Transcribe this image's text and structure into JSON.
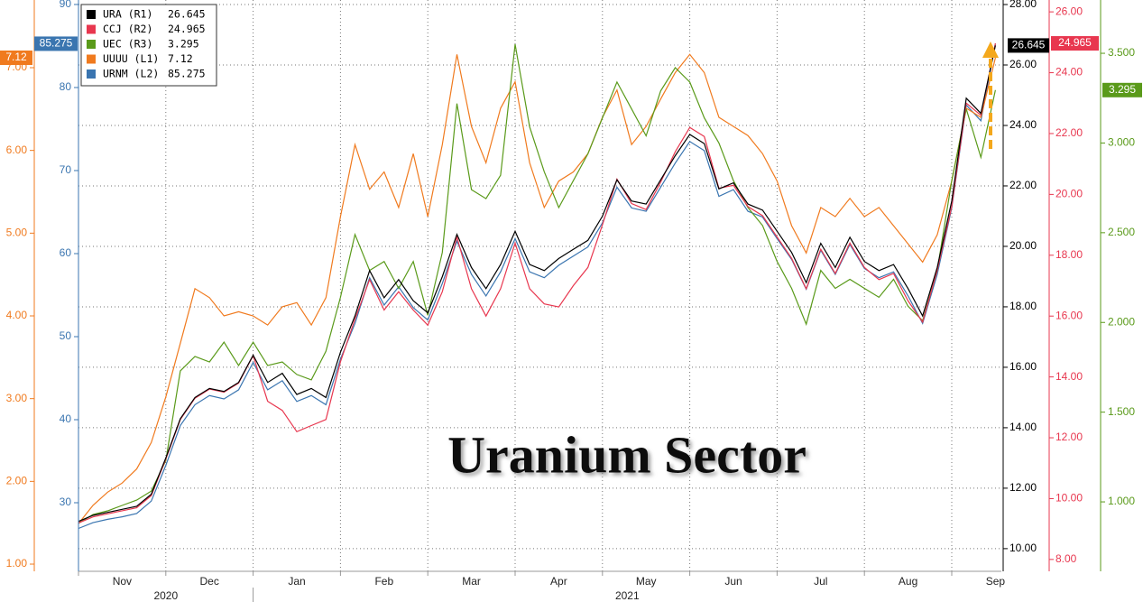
{
  "chart_data": {
    "type": "line",
    "annotation": "Uranium Sector",
    "categories": [
      "Nov",
      null,
      null,
      null,
      null,
      null,
      "Dec",
      null,
      null,
      null,
      null,
      null,
      "Jan",
      null,
      null,
      null,
      null,
      null,
      "Feb",
      null,
      null,
      null,
      null,
      null,
      "Mar",
      null,
      null,
      null,
      null,
      null,
      "Apr",
      null,
      null,
      null,
      null,
      null,
      "May",
      null,
      null,
      null,
      null,
      null,
      "Jun",
      null,
      null,
      null,
      null,
      null,
      "Jul",
      null,
      null,
      null,
      null,
      null,
      "Aug",
      null,
      null,
      null,
      null,
      null,
      "Sep",
      null,
      null,
      null
    ],
    "years": [
      "2020",
      "2021"
    ],
    "grid": true,
    "legend": "upper left",
    "axes": {
      "L1": {
        "lim": [
          0.913,
          7.818
        ],
        "color": "#f07a1e",
        "ticks": [
          {
            "value": 1,
            "label": "1.00"
          },
          {
            "value": 2,
            "label": "2.00"
          },
          {
            "value": 3,
            "label": "3.00"
          },
          {
            "value": 4,
            "label": "4.00"
          },
          {
            "value": 5,
            "label": "5.00"
          },
          {
            "value": 6,
            "label": "6.00"
          },
          {
            "value": 7,
            "label": "7.00"
          }
        ]
      },
      "L2": {
        "lim": [
          21.74,
          90.54
        ],
        "color": "#3a75b0",
        "ticks": [
          30,
          40,
          50,
          60,
          70,
          80,
          90
        ]
      },
      "R1": {
        "lim": [
          9.25,
          28.15
        ],
        "color": "#000000",
        "grid": true,
        "ticks": [
          {
            "value": 10,
            "label": "10.00"
          },
          {
            "value": 12,
            "label": "12.00"
          },
          {
            "value": 14,
            "label": "14.00"
          },
          {
            "value": 16,
            "label": "16.00"
          },
          {
            "value": 18,
            "label": "18.00"
          },
          {
            "value": 20,
            "label": "20.00"
          },
          {
            "value": 22,
            "label": "22.00"
          },
          {
            "value": 24,
            "label": "24.00"
          },
          {
            "value": 26,
            "label": "26.00"
          },
          {
            "value": 28,
            "label": "28.00"
          }
        ]
      },
      "R2": {
        "lim": [
          7.61,
          26.39
        ],
        "color": "#e8374f",
        "ticks": [
          {
            "value": 8,
            "label": "8.00"
          },
          {
            "value": 10,
            "label": "10.00"
          },
          {
            "value": 12,
            "label": "12.00"
          },
          {
            "value": 14,
            "label": "14.00"
          },
          {
            "value": 16,
            "label": "16.00"
          },
          {
            "value": 18,
            "label": "18.00"
          },
          {
            "value": 20,
            "label": "20.00"
          },
          {
            "value": 22,
            "label": "22.00"
          },
          {
            "value": 24,
            "label": "24.00"
          },
          {
            "value": 26,
            "label": "26.00"
          }
        ]
      },
      "R3": {
        "lim": [
          0.613,
          3.797
        ],
        "color": "#5a9a1a",
        "ticks": [
          {
            "value": 1,
            "label": "1.000"
          },
          {
            "value": 1.5,
            "label": "1.500"
          },
          {
            "value": 2,
            "label": "2.000"
          },
          {
            "value": 2.5,
            "label": "2.500"
          },
          {
            "value": 3,
            "label": "3.000"
          },
          {
            "value": 3.5,
            "label": "3.500"
          }
        ]
      }
    },
    "series": [
      {
        "name": "URA (R1)",
        "axis": "R1",
        "color": "#000000",
        "values": [
          10.9,
          11.1,
          11.2,
          11.3,
          11.4,
          11.8,
          13.0,
          14.3,
          15.0,
          15.3,
          15.2,
          15.5,
          16.4,
          15.5,
          15.8,
          15.1,
          15.3,
          15.0,
          16.5,
          17.7,
          19.2,
          18.3,
          18.9,
          18.2,
          17.8,
          19.0,
          20.4,
          19.3,
          18.6,
          19.4,
          20.5,
          19.4,
          19.2,
          19.6,
          19.9,
          20.2,
          21.0,
          22.2,
          21.5,
          21.4,
          22.2,
          23.0,
          23.7,
          23.4,
          21.9,
          22.1,
          21.4,
          21.2,
          20.5,
          19.8,
          18.8,
          20.1,
          19.3,
          20.3,
          19.5,
          19.2,
          19.4,
          18.6,
          17.7,
          19.3,
          21.5,
          24.9,
          24.4,
          26.645
        ]
      },
      {
        "name": "CCJ (R2)",
        "axis": "R2",
        "color": "#e8374f",
        "values": [
          9.2,
          9.4,
          9.5,
          9.6,
          9.7,
          10.1,
          11.3,
          12.6,
          13.3,
          13.6,
          13.5,
          13.8,
          14.7,
          13.2,
          12.9,
          12.2,
          12.4,
          12.6,
          14.5,
          15.9,
          17.2,
          16.2,
          16.8,
          16.2,
          15.7,
          16.8,
          18.6,
          16.9,
          16.0,
          16.9,
          18.4,
          16.9,
          16.4,
          16.3,
          17.0,
          17.6,
          19.0,
          20.5,
          19.7,
          19.5,
          20.4,
          21.4,
          22.2,
          21.9,
          20.2,
          20.3,
          19.6,
          19.3,
          18.6,
          17.9,
          16.9,
          18.2,
          17.4,
          18.4,
          17.6,
          17.2,
          17.4,
          16.5,
          15.8,
          17.5,
          19.6,
          23.0,
          22.6,
          24.965
        ]
      },
      {
        "name": "UEC (R3)",
        "axis": "R3",
        "color": "#5a9a1a",
        "values": [
          0.88,
          0.93,
          0.95,
          0.98,
          1.01,
          1.06,
          1.23,
          1.73,
          1.81,
          1.78,
          1.89,
          1.76,
          1.89,
          1.76,
          1.78,
          1.71,
          1.68,
          1.84,
          2.14,
          2.49,
          2.29,
          2.34,
          2.19,
          2.34,
          2.04,
          2.39,
          3.22,
          2.74,
          2.69,
          2.82,
          3.55,
          3.09,
          2.84,
          2.64,
          2.79,
          2.94,
          3.14,
          3.34,
          3.19,
          3.04,
          3.29,
          3.42,
          3.34,
          3.14,
          3.0,
          2.79,
          2.64,
          2.54,
          2.34,
          2.19,
          1.99,
          2.29,
          2.19,
          2.24,
          2.19,
          2.14,
          2.24,
          2.09,
          2.01,
          2.29,
          2.79,
          3.19,
          2.92,
          3.295
        ]
      },
      {
        "name": "UUUU (L1)",
        "axis": "L1",
        "color": "#f07a1e",
        "values": [
          1.49,
          1.71,
          1.87,
          1.98,
          2.15,
          2.47,
          3.02,
          3.67,
          4.33,
          4.22,
          4.0,
          4.05,
          4.0,
          3.89,
          4.11,
          4.16,
          3.89,
          4.22,
          5.2,
          6.07,
          5.53,
          5.74,
          5.31,
          5.96,
          5.2,
          6.07,
          7.16,
          6.29,
          5.85,
          6.51,
          6.83,
          5.85,
          5.31,
          5.63,
          5.74,
          5.96,
          6.4,
          6.73,
          6.07,
          6.29,
          6.62,
          6.94,
          7.16,
          6.94,
          6.4,
          6.29,
          6.18,
          5.96,
          5.63,
          5.09,
          4.76,
          5.31,
          5.2,
          5.42,
          5.2,
          5.31,
          5.09,
          4.87,
          4.65,
          4.98,
          5.63,
          6.51,
          6.4,
          7.12
        ]
      },
      {
        "name": "URNM (L2)",
        "axis": "L2",
        "color": "#3a75b0",
        "values": [
          26.9,
          27.6,
          28.0,
          28.3,
          28.7,
          30.2,
          34.5,
          39.3,
          41.8,
          42.9,
          42.5,
          43.6,
          46.9,
          43.6,
          44.7,
          42.2,
          42.9,
          41.8,
          47.3,
          51.6,
          57.1,
          53.8,
          56.0,
          53.5,
          52.0,
          56.4,
          61.5,
          57.5,
          54.9,
          57.8,
          61.8,
          57.8,
          57.1,
          58.6,
          59.7,
          60.8,
          63.7,
          68.0,
          65.5,
          65.1,
          68.0,
          70.9,
          73.5,
          72.4,
          66.9,
          67.7,
          65.1,
          64.4,
          61.8,
          59.3,
          55.7,
          60.4,
          57.5,
          61.1,
          58.2,
          57.1,
          57.8,
          54.9,
          51.6,
          57.5,
          65.5,
          77.9,
          76.0,
          85.275
        ]
      }
    ]
  }
}
